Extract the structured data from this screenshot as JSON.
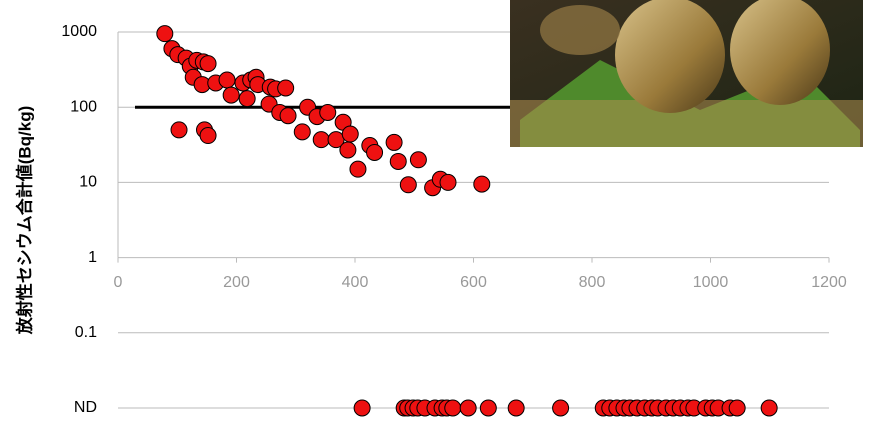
{
  "chart_data": {
    "type": "scatter",
    "y_label": "放射性セシウム合計値(Bq/kg)",
    "log_scale_y": true,
    "grid": true,
    "xlim": [
      0,
      1200
    ],
    "xticks": [
      0,
      200,
      400,
      600,
      800,
      1000,
      1200
    ],
    "ylim": [
      0.01,
      1000
    ],
    "yticks": [
      1000,
      100,
      10,
      1,
      0.1,
      {
        "value": 0.01,
        "label": "ND"
      }
    ],
    "reference_line": 100,
    "series": [
      {
        "color": "#ee1111",
        "x": [
          79,
          91,
          101,
          115,
          122,
          103,
          127,
          133,
          144,
          152,
          142,
          146,
          152,
          165,
          184,
          191,
          211,
          218,
          224,
          233,
          236,
          255,
          257,
          266,
          283,
          273,
          287,
          311,
          320,
          336,
          343,
          354,
          368,
          380,
          392,
          388,
          405,
          425,
          433,
          466,
          473,
          507,
          490,
          531,
          544,
          557,
          614
        ],
        "values": [
          950,
          600,
          500,
          450,
          350,
          50,
          250,
          420,
          400,
          380,
          200,
          50,
          42,
          210,
          230,
          145,
          210,
          130,
          230,
          250,
          200,
          110,
          185,
          175,
          180,
          85,
          77,
          47,
          100,
          75,
          37,
          85,
          37,
          63,
          44,
          27,
          15,
          31,
          25,
          34,
          19,
          20,
          9.3,
          8.5,
          11,
          10,
          9.5
        ]
      }
    ],
    "nd_x": [
      412,
      483,
      489,
      498,
      506,
      518,
      535,
      547,
      555,
      565,
      591,
      625,
      672,
      747,
      819,
      830,
      842,
      854,
      864,
      876,
      889,
      901,
      911,
      925,
      937,
      949,
      962,
      972,
      992,
      1003,
      1013,
      1033,
      1045,
      1099
    ]
  }
}
